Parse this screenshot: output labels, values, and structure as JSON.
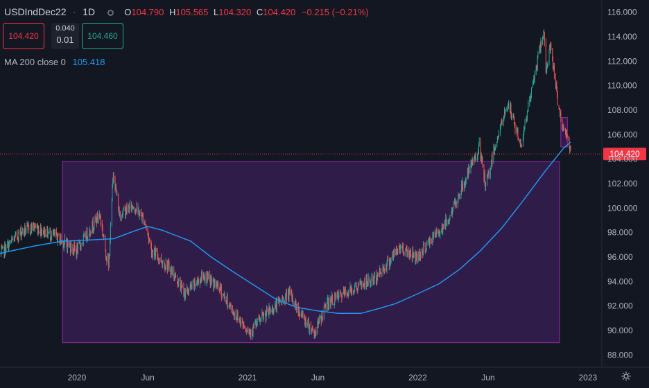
{
  "header": {
    "symbol": "USDIndDec22",
    "interval": "1D",
    "open_label": "O",
    "open": "104.790",
    "high_label": "H",
    "high": "105.565",
    "low_label": "L",
    "low": "104.320",
    "close_label": "C",
    "close": "104.420",
    "change": "−0.215 (−0.21%)"
  },
  "trade": {
    "sell_price": "104.420",
    "buy_price": "104.460",
    "spread_top": "0.040",
    "spread_bottom": "0.01"
  },
  "indicator": {
    "label": "MA 200 close 0",
    "value": "105.418"
  },
  "colors": {
    "background": "#131722",
    "up": "#26a69a",
    "down": "#ef5350",
    "ma": "#2196f3",
    "rectangle_border": "#9c27b0",
    "rectangle_fill": "#3a1f55",
    "last_price": "#f23645",
    "text": "#b2b5be"
  },
  "chart_data": {
    "type": "candlestick",
    "y_axis": {
      "ticks": [
        88,
        90,
        92,
        94,
        96,
        98,
        100,
        102,
        104,
        106,
        108,
        110,
        112,
        114,
        116
      ],
      "tick_labels": [
        "88.000",
        "90.000",
        "92.000",
        "94.000",
        "96.000",
        "98.000",
        "100.000",
        "102.000",
        "104.000",
        "106.000",
        "108.000",
        "110.000",
        "112.000",
        "114.000",
        "116.000"
      ],
      "ylim": [
        87.0,
        117.0
      ],
      "position": "right"
    },
    "x_axis": {
      "ticks": [
        "2020-01-01",
        "2020-06-01",
        "2021-01-01",
        "2021-06-01",
        "2022-01-01",
        "2022-06-01",
        "2023-01-01"
      ],
      "tick_labels": [
        "2020",
        "Jun",
        "2021",
        "Jun",
        "2022",
        "Jun",
        "2023"
      ],
      "xlim": [
        "2019-07-20",
        "2023-01-31"
      ]
    },
    "last_price": {
      "value": 104.42,
      "label": "104.420"
    },
    "price_path": [
      [
        "2019-07-20",
        96.2
      ],
      [
        "2019-09-01",
        98.0
      ],
      [
        "2019-10-01",
        98.5
      ],
      [
        "2019-11-15",
        97.7
      ],
      [
        "2019-12-31",
        96.5
      ],
      [
        "2020-02-19",
        99.5
      ],
      [
        "2020-03-09",
        95.0
      ],
      [
        "2020-03-19",
        103.0
      ],
      [
        "2020-04-01",
        99.5
      ],
      [
        "2020-05-01",
        100.2
      ],
      [
        "2020-05-25",
        99.0
      ],
      [
        "2020-06-10",
        96.5
      ],
      [
        "2020-07-20",
        95.0
      ],
      [
        "2020-08-20",
        93.0
      ],
      [
        "2020-09-28",
        94.5
      ],
      [
        "2020-11-01",
        93.5
      ],
      [
        "2020-12-01",
        91.5
      ],
      [
        "2021-01-06",
        89.9
      ],
      [
        "2021-02-01",
        91.0
      ],
      [
        "2021-03-31",
        93.0
      ],
      [
        "2021-05-01",
        91.0
      ],
      [
        "2021-05-25",
        89.8
      ],
      [
        "2021-06-20",
        92.2
      ],
      [
        "2021-08-20",
        93.5
      ],
      [
        "2021-10-01",
        94.2
      ],
      [
        "2021-11-24",
        96.8
      ],
      [
        "2021-12-31",
        96.0
      ],
      [
        "2022-01-28",
        97.3
      ],
      [
        "2022-03-07",
        99.0
      ],
      [
        "2022-04-28",
        103.6
      ],
      [
        "2022-05-13",
        105.0
      ],
      [
        "2022-05-27",
        101.7
      ],
      [
        "2022-06-15",
        105.0
      ],
      [
        "2022-07-14",
        108.6
      ],
      [
        "2022-08-10",
        105.1
      ],
      [
        "2022-09-28",
        114.5
      ],
      [
        "2022-10-04",
        111.0
      ],
      [
        "2022-10-13",
        113.5
      ],
      [
        "2022-10-27",
        109.0
      ],
      [
        "2022-11-10",
        106.2
      ],
      [
        "2022-11-16",
        106.5
      ],
      [
        "2022-11-25",
        104.42
      ]
    ],
    "ma_series": {
      "name": "MA 200 close 0",
      "points": [
        [
          "2019-07-20",
          96.3
        ],
        [
          "2019-10-01",
          96.9
        ],
        [
          "2019-12-01",
          97.3
        ],
        [
          "2020-02-01",
          97.4
        ],
        [
          "2020-03-20",
          97.5
        ],
        [
          "2020-05-01",
          98.1
        ],
        [
          "2020-06-01",
          98.5
        ],
        [
          "2020-07-01",
          98.2
        ],
        [
          "2020-09-01",
          97.3
        ],
        [
          "2020-10-15",
          96.0
        ],
        [
          "2020-12-01",
          94.8
        ],
        [
          "2021-01-15",
          93.7
        ],
        [
          "2021-03-01",
          92.6
        ],
        [
          "2021-04-15",
          91.9
        ],
        [
          "2021-06-01",
          91.6
        ],
        [
          "2021-07-15",
          91.4
        ],
        [
          "2021-09-01",
          91.4
        ],
        [
          "2021-10-01",
          91.7
        ],
        [
          "2021-11-15",
          92.2
        ],
        [
          "2022-01-01",
          93.0
        ],
        [
          "2022-02-15",
          93.8
        ],
        [
          "2022-04-01",
          95.0
        ],
        [
          "2022-05-15",
          96.5
        ],
        [
          "2022-07-01",
          98.4
        ],
        [
          "2022-08-15",
          100.6
        ],
        [
          "2022-10-01",
          103.0
        ],
        [
          "2022-11-10",
          104.9
        ],
        [
          "2022-11-25",
          105.4
        ]
      ]
    },
    "rectangles": [
      {
        "x0": "2019-12-01",
        "x1": "2022-11-01",
        "y0": 89.0,
        "y1": 103.8
      },
      {
        "x0": "2022-11-04",
        "x1": "2022-11-18",
        "y0": 105.0,
        "y1": 107.4
      }
    ]
  }
}
